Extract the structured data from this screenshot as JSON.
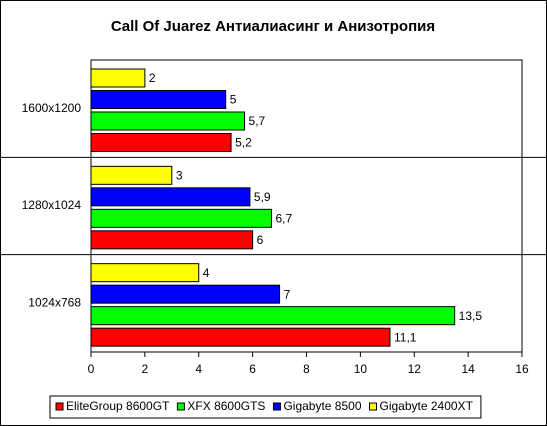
{
  "chart_data": {
    "type": "hbar",
    "title": "Call Of Juarez Антиалиасинг и Анизотропия",
    "categories": [
      "1600x1200",
      "1280x1024",
      "1024x768"
    ],
    "series": [
      {
        "name": "EliteGroup 8600GT",
        "color": "#ff0000",
        "values": [
          5.2,
          6,
          11.1
        ],
        "value_labels": [
          "5,2",
          "6",
          "11,1"
        ]
      },
      {
        "name": "XFX 8600GTS",
        "color": "#00ff00",
        "values": [
          5.7,
          6.7,
          13.5
        ],
        "value_labels": [
          "5,7",
          "6,7",
          "13,5"
        ]
      },
      {
        "name": "Gigabyte 8500",
        "color": "#0000ff",
        "values": [
          5,
          5.9,
          7
        ],
        "value_labels": [
          "5",
          "5,9",
          "7"
        ]
      },
      {
        "name": "Gigabyte 2400XT",
        "color": "#ffff00",
        "values": [
          2,
          3,
          4
        ],
        "value_labels": [
          "2",
          "3",
          "4"
        ]
      }
    ],
    "xlim": [
      0,
      16
    ],
    "xticks": [
      0,
      2,
      4,
      6,
      8,
      10,
      12,
      14,
      16
    ],
    "grid": false,
    "legend": "bottom"
  }
}
